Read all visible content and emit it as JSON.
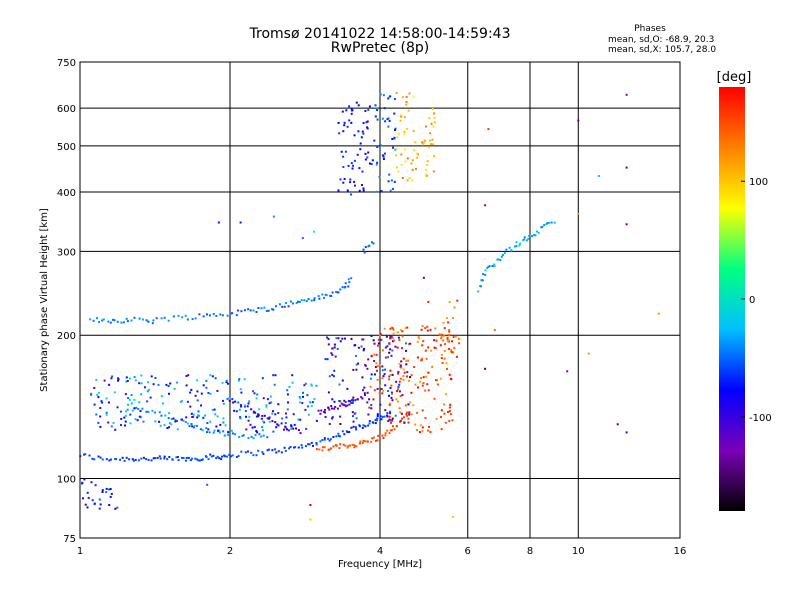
{
  "chart_data": {
    "type": "scatter",
    "title": "Tromsø 20141022 14:58:00-14:59:43",
    "subtitle": "RwPretec (8p)",
    "xlabel": "Frequency [MHz]",
    "ylabel": "Stationary phase Virtual Height [km]",
    "x_scale": "log",
    "y_scale": "log",
    "xlim": [
      1,
      16
    ],
    "ylim": [
      75,
      750
    ],
    "x_ticks": [
      1,
      2,
      4,
      6,
      8,
      10,
      16
    ],
    "y_ticks": [
      75,
      100,
      200,
      300,
      400,
      500,
      600,
      750
    ],
    "grid": true,
    "stats": {
      "title": "Phases",
      "o_line": "mean, sd,O: -68.9, 20.3",
      "x_line": "mean, sd,X: 105.7, 28.0"
    },
    "colorbar": {
      "label": "[deg]",
      "range": [
        -180,
        180
      ],
      "ticks": [
        100,
        0,
        -100
      ],
      "colors": [
        "#000000",
        "#7a00b8",
        "#0000ff",
        "#00c0ff",
        "#00ff80",
        "#ffff00",
        "#ff8000",
        "#ff0000"
      ]
    },
    "series": [
      {
        "kind": "trace",
        "x": [
          1.0,
          1.1,
          1.2,
          1.3,
          1.4,
          1.5,
          1.6,
          1.7,
          1.8,
          1.9,
          2.0,
          2.2,
          2.4,
          2.6,
          2.8,
          3.0,
          3.2,
          3.4,
          3.6,
          3.8,
          4.0,
          4.2
        ],
        "y": [
          112,
          110,
          110,
          110,
          110,
          110,
          110,
          110,
          111,
          111,
          112,
          113,
          114,
          115,
          117,
          119,
          122,
          125,
          128,
          131,
          134,
          137
        ],
        "phase": -60
      },
      {
        "kind": "trace",
        "x": [
          3.0,
          3.2,
          3.4,
          3.6,
          3.8,
          4.0,
          4.2,
          4.4,
          4.6
        ],
        "y": [
          115,
          116,
          117,
          118,
          120,
          122,
          126,
          131,
          138
        ],
        "phase": 150
      },
      {
        "kind": "trace",
        "x": [
          1.05,
          1.15,
          1.25,
          1.4,
          1.6,
          1.8,
          2.0,
          2.2,
          2.4,
          2.6,
          2.8,
          3.0,
          3.2,
          3.4,
          3.5
        ],
        "y": [
          215,
          215,
          215,
          216,
          218,
          220,
          222,
          225,
          228,
          232,
          236,
          240,
          243,
          252,
          262
        ],
        "phase": -45
      },
      {
        "kind": "trace",
        "x": [
          3.0,
          3.2,
          3.4,
          3.6,
          3.8
        ],
        "y": [
          138,
          140,
          143,
          147,
          152
        ],
        "phase": -120
      },
      {
        "kind": "trace",
        "x": [
          2.0,
          2.2,
          2.4,
          2.6,
          2.8
        ],
        "y": [
          145,
          140,
          133,
          128,
          125
        ],
        "phase": -95
      },
      {
        "kind": "trace",
        "x": [
          1.25,
          1.4,
          1.55,
          1.7,
          1.85,
          2.0,
          2.2,
          2.4
        ],
        "y": [
          140,
          138,
          133,
          128,
          126,
          124,
          123,
          122
        ],
        "phase": -40
      },
      {
        "kind": "trace",
        "x": [
          6.3,
          6.5,
          6.8,
          7.2,
          7.6,
          8.0,
          8.5,
          9.0
        ],
        "y": [
          250,
          270,
          285,
          300,
          312,
          322,
          335,
          350
        ],
        "phase": -30
      },
      {
        "kind": "trace",
        "x": [
          3.7,
          3.9
        ],
        "y": [
          300,
          315
        ],
        "phase": -50
      },
      {
        "kind": "cluster",
        "xlim": [
          3.3,
          3.9
        ],
        "ylim": [
          400,
          620
        ],
        "phase": -75,
        "spread": 20
      },
      {
        "kind": "cluster",
        "xlim": [
          3.9,
          4.3
        ],
        "ylim": [
          400,
          650
        ],
        "phase": -55,
        "spread": 20
      },
      {
        "kind": "cluster",
        "xlim": [
          4.3,
          4.7
        ],
        "ylim": [
          420,
          650
        ],
        "phase": 100,
        "spread": 40
      },
      {
        "kind": "cluster",
        "xlim": [
          4.7,
          5.2
        ],
        "ylim": [
          430,
          600
        ],
        "phase": 110,
        "spread": 30
      },
      {
        "kind": "cluster",
        "xlim": [
          3.1,
          4.6
        ],
        "ylim": [
          130,
          200
        ],
        "phase": -100,
        "spread": 60
      },
      {
        "kind": "cluster",
        "xlim": [
          3.8,
          5.6
        ],
        "ylim": [
          125,
          210
        ],
        "phase": 150,
        "spread": 40
      },
      {
        "kind": "cluster",
        "xlim": [
          1.05,
          3.0
        ],
        "ylim": [
          125,
          165
        ],
        "phase": -60,
        "spread": 60
      },
      {
        "kind": "cluster",
        "xlim": [
          5.3,
          5.8
        ],
        "ylim": [
          175,
          240
        ],
        "phase": 140,
        "spread": 30
      },
      {
        "kind": "cluster",
        "xlim": [
          1.0,
          1.2
        ],
        "ylim": [
          85,
          100
        ],
        "phase": -70,
        "spread": 30
      }
    ],
    "points": [
      {
        "x": 12.5,
        "y": 640,
        "phase": -130
      },
      {
        "x": 10.0,
        "y": 565,
        "phase": -140
      },
      {
        "x": 12.5,
        "y": 450,
        "phase": -145
      },
      {
        "x": 11.0,
        "y": 432,
        "phase": -20
      },
      {
        "x": 12.5,
        "y": 342,
        "phase": -140
      },
      {
        "x": 10.0,
        "y": 360,
        "phase": 120
      },
      {
        "x": 14.5,
        "y": 222,
        "phase": 120
      },
      {
        "x": 10.5,
        "y": 183,
        "phase": 120
      },
      {
        "x": 6.6,
        "y": 542,
        "phase": 160
      },
      {
        "x": 6.5,
        "y": 375,
        "phase": -130
      },
      {
        "x": 6.8,
        "y": 205,
        "phase": 140
      },
      {
        "x": 6.5,
        "y": 170,
        "phase": -150
      },
      {
        "x": 5.6,
        "y": 83,
        "phase": 100
      },
      {
        "x": 5.0,
        "y": 235,
        "phase": 170
      },
      {
        "x": 4.9,
        "y": 264,
        "phase": -140
      },
      {
        "x": 2.8,
        "y": 320,
        "phase": -50
      },
      {
        "x": 1.9,
        "y": 345,
        "phase": -70
      },
      {
        "x": 2.1,
        "y": 345,
        "phase": -70
      },
      {
        "x": 2.45,
        "y": 355,
        "phase": -40
      },
      {
        "x": 2.95,
        "y": 330,
        "phase": 20
      },
      {
        "x": 2.9,
        "y": 88,
        "phase": -130
      },
      {
        "x": 2.9,
        "y": 82,
        "phase": 100
      },
      {
        "x": 1.8,
        "y": 97,
        "phase": -50
      },
      {
        "x": 1.4,
        "y": 212,
        "phase": -50
      },
      {
        "x": 9.5,
        "y": 168,
        "phase": -130
      },
      {
        "x": 12.0,
        "y": 130,
        "phase": -140
      },
      {
        "x": 12.5,
        "y": 125,
        "phase": -100
      },
      {
        "x": 3.9,
        "y": 192,
        "phase": -140
      },
      {
        "x": 4.6,
        "y": 192,
        "phase": -140
      },
      {
        "x": 3.5,
        "y": 395,
        "phase": -60
      }
    ]
  }
}
